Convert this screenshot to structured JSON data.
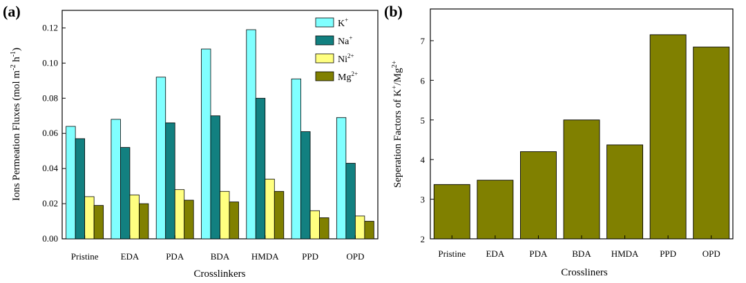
{
  "colors": {
    "K": "#80ffff",
    "Na": "#128080",
    "Ni": "#ffff80",
    "Mg": "#808000",
    "stroke": "#000000"
  },
  "chart_data": [
    {
      "panel": "(a)",
      "type": "bar",
      "categories": [
        "Pristine",
        "EDA",
        "PDA",
        "BDA",
        "HMDA",
        "PPD",
        "OPD"
      ],
      "series": [
        {
          "name": "K",
          "sup": "+",
          "values": [
            0.064,
            0.068,
            0.092,
            0.108,
            0.119,
            0.091,
            0.069
          ]
        },
        {
          "name": "Na",
          "sup": "+",
          "values": [
            0.057,
            0.052,
            0.066,
            0.07,
            0.08,
            0.061,
            0.043
          ]
        },
        {
          "name": "Ni",
          "sup": "2+",
          "values": [
            0.024,
            0.025,
            0.028,
            0.027,
            0.034,
            0.016,
            0.013
          ]
        },
        {
          "name": "Mg",
          "sup": "2+",
          "values": [
            0.019,
            0.02,
            0.022,
            0.021,
            0.027,
            0.012,
            0.01
          ]
        }
      ],
      "xlabel": "Crosslinkers",
      "ylabel": {
        "base": "Ions Permeation Fluxes (mol m",
        "s1": "-2",
        "mid": " h",
        "s2": "-1",
        "end": ")"
      },
      "ylim": [
        0,
        0.13
      ],
      "yticks": [
        "0.00",
        "0.02",
        "0.04",
        "0.06",
        "0.08",
        "0.10",
        "0.12"
      ],
      "legend_position": "top-right"
    },
    {
      "panel": "(b)",
      "type": "bar",
      "categories": [
        "Pristine",
        "EDA",
        "PDA",
        "BDA",
        "HMDA",
        "PPD",
        "OPD"
      ],
      "values": [
        3.37,
        3.48,
        4.2,
        5.0,
        4.37,
        7.15,
        6.84
      ],
      "xlabel": "Crossliners",
      "ylabel": {
        "base": "Seperation Factors of K",
        "s1": "+",
        "mid": "/Mg",
        "s2": "2+"
      },
      "ylim": [
        2,
        7.8
      ],
      "yticks": [
        "2",
        "3",
        "4",
        "5",
        "6",
        "7"
      ]
    }
  ]
}
